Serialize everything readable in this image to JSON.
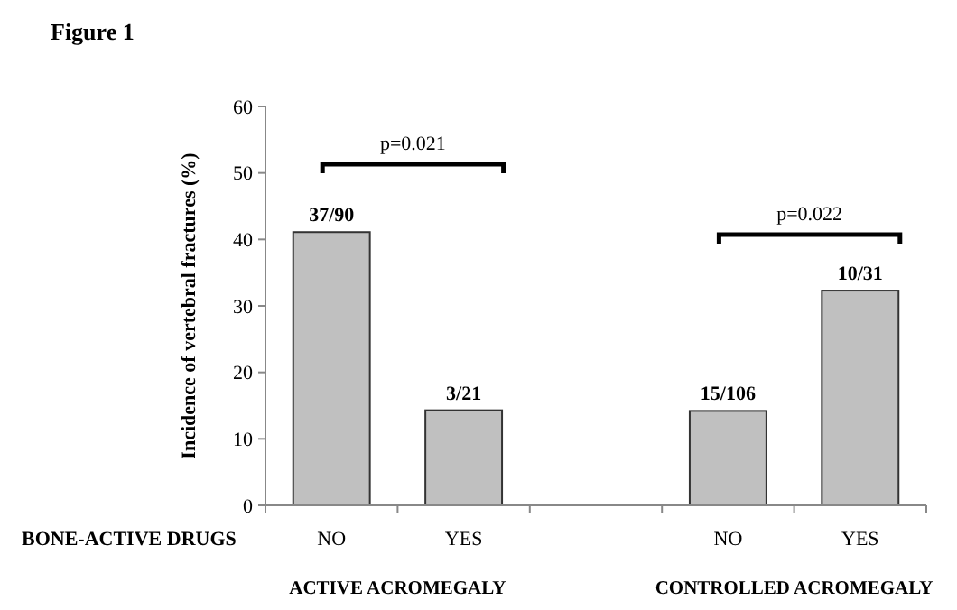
{
  "chart_data": {
    "type": "bar",
    "title": "Figure 1",
    "xlabel": "BONE-ACTIVE DRUGS",
    "ylabel": "Incidence of vertebral fractures (%)",
    "categories": [
      "NO",
      "YES",
      null,
      "NO",
      "YES"
    ],
    "values": [
      41.1,
      14.3,
      null,
      14.2,
      32.3
    ],
    "value_labels": [
      "37/90",
      "3/21",
      null,
      "15/106",
      "10/31"
    ],
    "color": "#c0c0c0",
    "ylim": [
      0,
      60
    ],
    "yticks": [
      0,
      10,
      20,
      30,
      40,
      50,
      60
    ],
    "annotations": [
      "p=0.021",
      "p=0.022",
      "ACTIVE ACROMEGALY",
      "CONTROLLED ACROMEGALY"
    ]
  }
}
